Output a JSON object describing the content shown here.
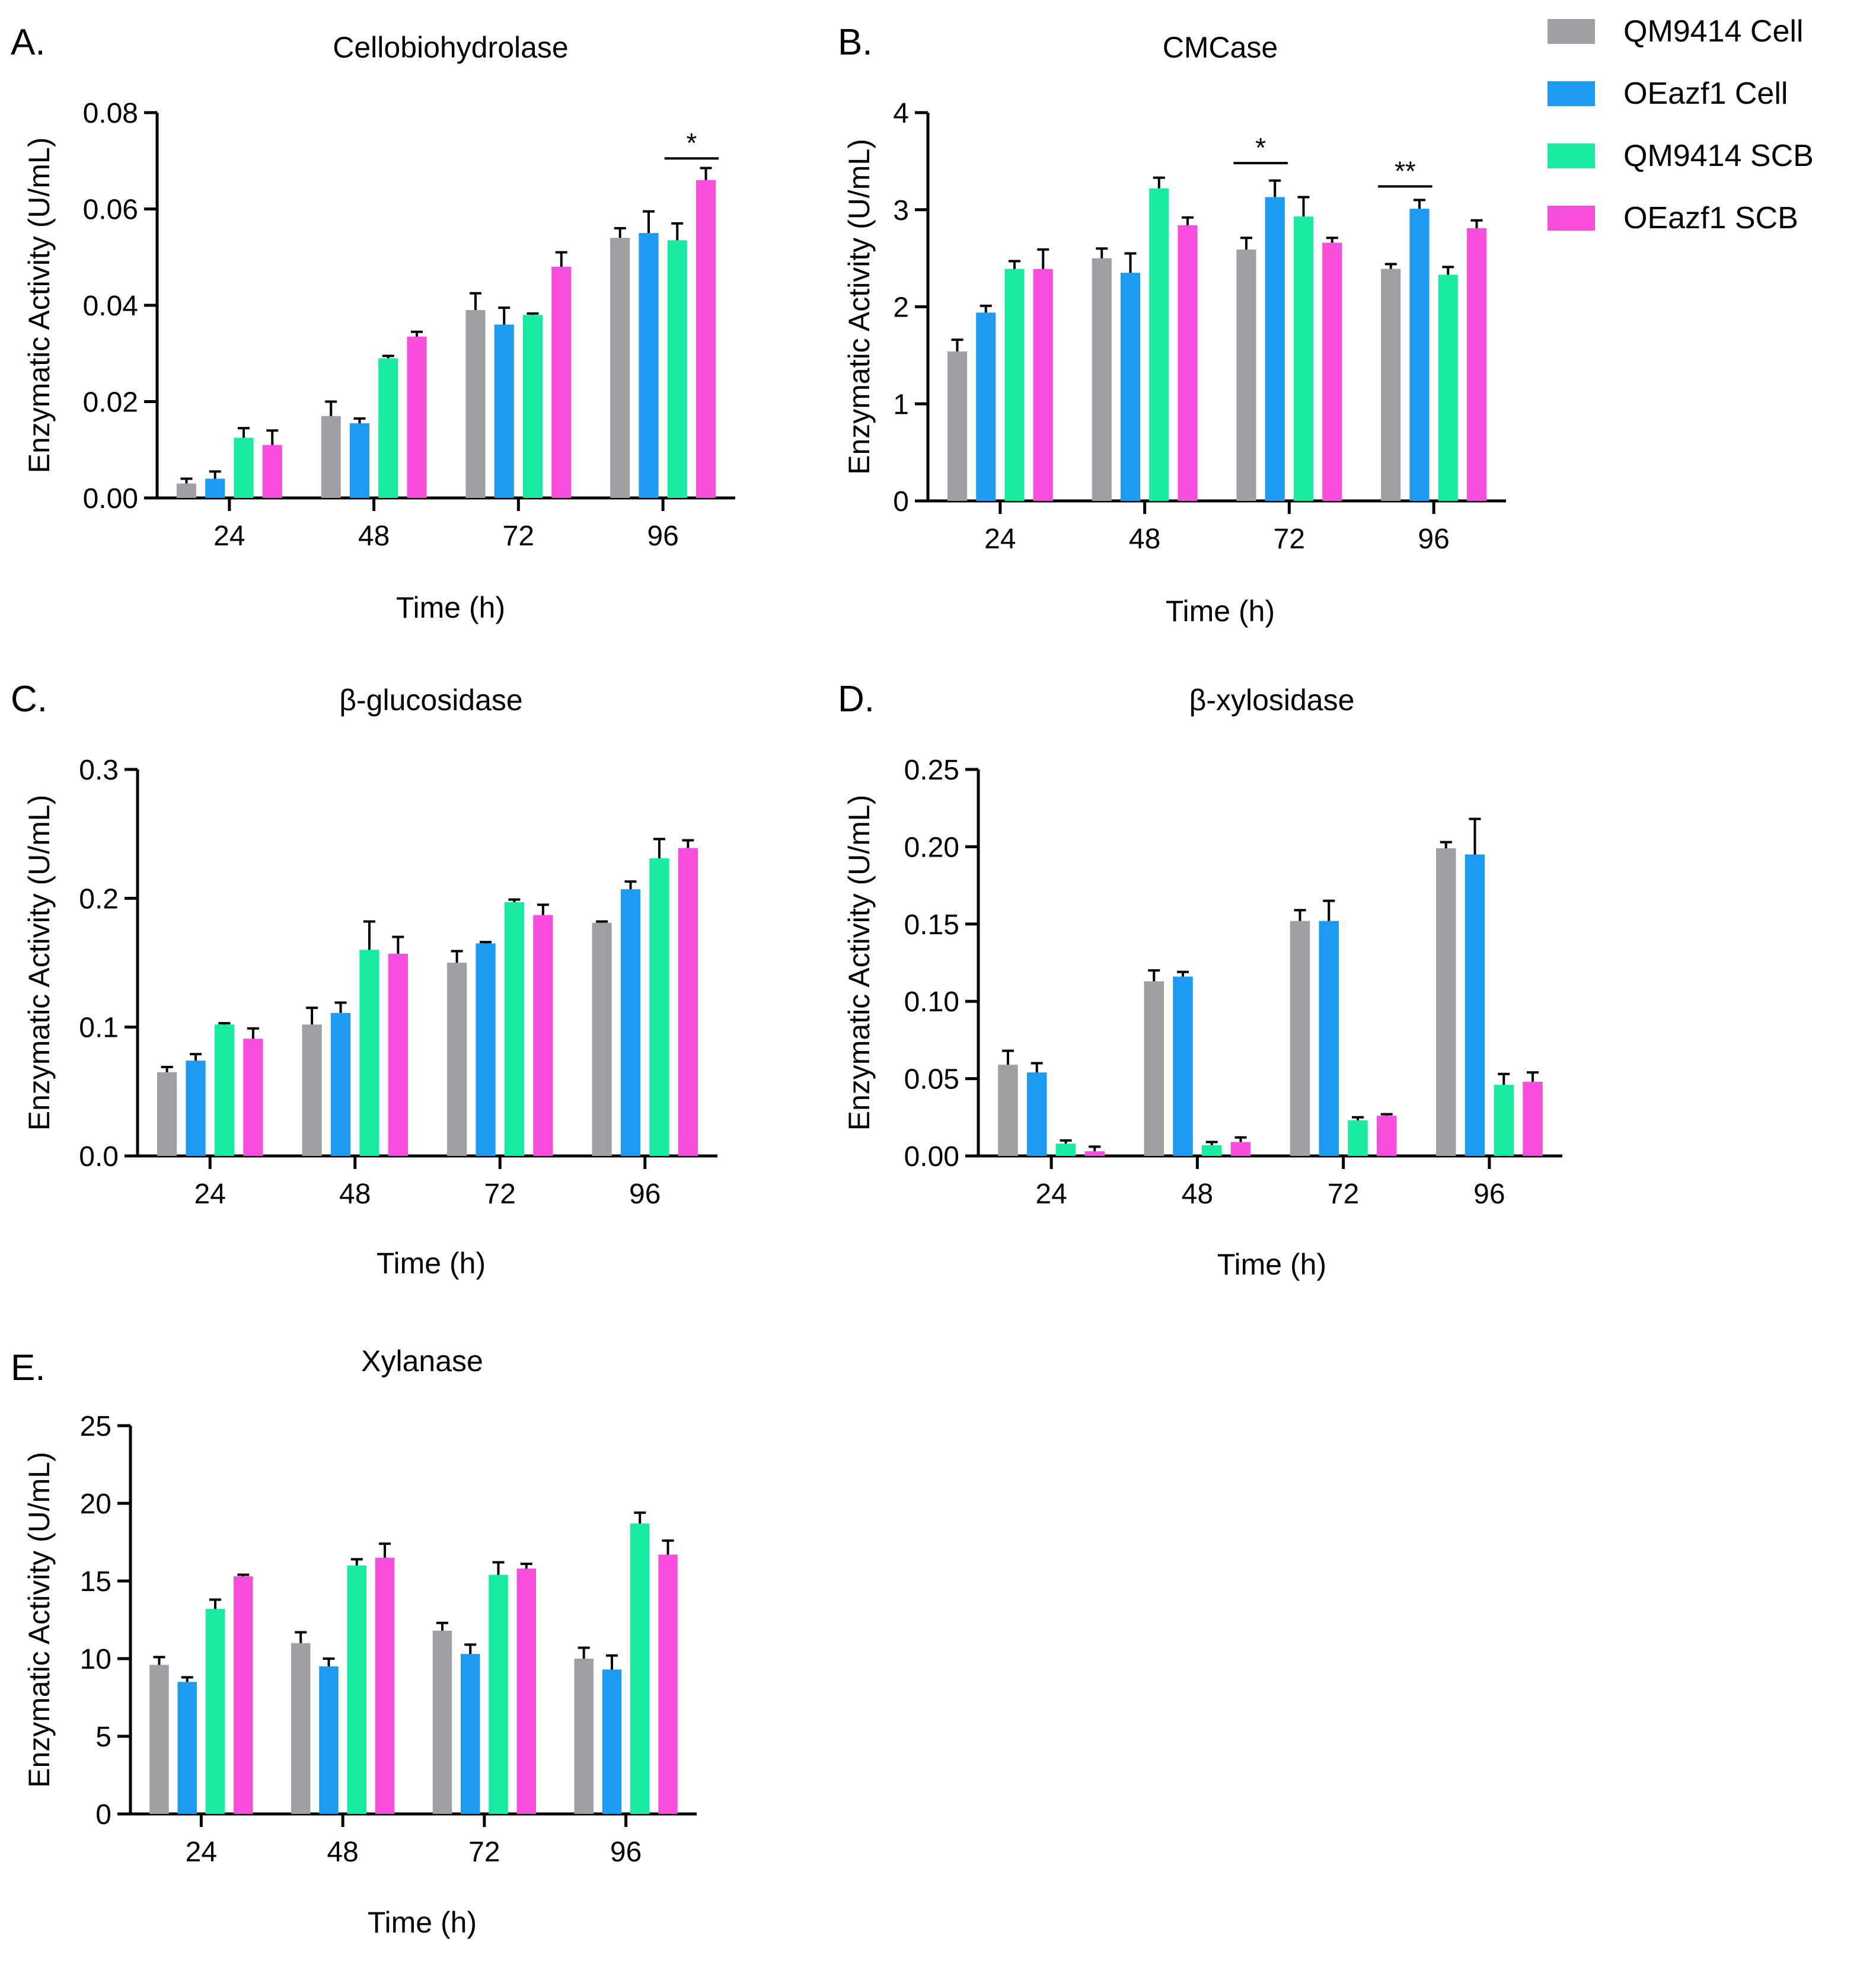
{
  "legend": {
    "entries": [
      {
        "name": "QM9414 Cell",
        "color": "#A09FA4"
      },
      {
        "name": "OEazf1 Cell",
        "color": "#1E9BF0"
      },
      {
        "name": "QM9414 SCB",
        "color": "#19EBA0"
      },
      {
        "name": "OEazf1 SCB",
        "color": "#F74FDB"
      }
    ]
  },
  "chart_data": [
    {
      "panel": "A.",
      "type": "bar",
      "title": "Cellobiohydrolase",
      "xlabel": "Time (h)",
      "ylabel": "Enzymatic Activity (U/mL)",
      "categories": [
        "24",
        "48",
        "72",
        "96"
      ],
      "ylim": [
        0,
        0.08
      ],
      "yticks": [
        0,
        0.02,
        0.04,
        0.06,
        0.08
      ],
      "ytick_labels": [
        "0.00",
        "0.02",
        "0.04",
        "0.06",
        "0.08"
      ],
      "series": [
        {
          "name": "QM9414 Cell",
          "values": [
            0.003,
            0.017,
            0.039,
            0.054
          ],
          "errors": [
            0.001,
            0.003,
            0.0035,
            0.002
          ]
        },
        {
          "name": "OEazf1 Cell",
          "values": [
            0.004,
            0.0155,
            0.036,
            0.055
          ],
          "errors": [
            0.0015,
            0.001,
            0.0035,
            0.0045
          ]
        },
        {
          "name": "QM9414 SCB",
          "values": [
            0.0125,
            0.029,
            0.038,
            0.0535
          ],
          "errors": [
            0.002,
            0.0005,
            0.0003,
            0.0035
          ]
        },
        {
          "name": "OEazf1 SCB",
          "values": [
            0.011,
            0.0335,
            0.048,
            0.066
          ],
          "errors": [
            0.003,
            0.001,
            0.003,
            0.0025
          ]
        }
      ],
      "significance": [
        {
          "label": "*",
          "category": "96",
          "from_series": 2,
          "to_series": 3,
          "y": 0.0705
        }
      ]
    },
    {
      "panel": "B.",
      "type": "bar",
      "title": "CMCase",
      "xlabel": "Time (h)",
      "ylabel": "Enzymatic Activity (U/mL)",
      "categories": [
        "24",
        "48",
        "72",
        "96"
      ],
      "ylim": [
        0,
        4
      ],
      "yticks": [
        0,
        1,
        2,
        3,
        4
      ],
      "ytick_labels": [
        "0",
        "1",
        "2",
        "3",
        "4"
      ],
      "series": [
        {
          "name": "QM9414 Cell",
          "values": [
            1.54,
            2.5,
            2.59,
            2.39
          ],
          "errors": [
            0.12,
            0.1,
            0.12,
            0.05
          ]
        },
        {
          "name": "OEazf1 Cell",
          "values": [
            1.94,
            2.35,
            3.13,
            3.01
          ],
          "errors": [
            0.07,
            0.2,
            0.17,
            0.09
          ]
        },
        {
          "name": "QM9414 SCB",
          "values": [
            2.39,
            3.22,
            2.93,
            2.33
          ],
          "errors": [
            0.08,
            0.11,
            0.2,
            0.08
          ]
        },
        {
          "name": "OEazf1 SCB",
          "values": [
            2.39,
            2.84,
            2.66,
            2.81
          ],
          "errors": [
            0.2,
            0.08,
            0.05,
            0.08
          ]
        }
      ],
      "significance": [
        {
          "label": "*",
          "category": "72",
          "from_series": 0,
          "to_series": 1,
          "y": 3.48
        },
        {
          "label": "**",
          "category": "96",
          "from_series": 0,
          "to_series": 1,
          "y": 3.24
        }
      ]
    },
    {
      "panel": "C.",
      "type": "bar",
      "title": "β-glucosidase",
      "xlabel": "Time (h)",
      "ylabel": "Enzymatic Activity (U/mL)",
      "categories": [
        "24",
        "48",
        "72",
        "96"
      ],
      "ylim": [
        0,
        0.3
      ],
      "yticks": [
        0,
        0.1,
        0.2,
        0.3
      ],
      "ytick_labels": [
        "0.0",
        "0.1",
        "0.2",
        "0.3"
      ],
      "series": [
        {
          "name": "QM9414 Cell",
          "values": [
            0.065,
            0.102,
            0.15,
            0.181
          ],
          "errors": [
            0.004,
            0.013,
            0.009,
            0.001
          ]
        },
        {
          "name": "OEazf1 Cell",
          "values": [
            0.074,
            0.111,
            0.165,
            0.207
          ],
          "errors": [
            0.005,
            0.008,
            0.001,
            0.006
          ]
        },
        {
          "name": "QM9414 SCB",
          "values": [
            0.102,
            0.16,
            0.197,
            0.231
          ],
          "errors": [
            0.001,
            0.022,
            0.002,
            0.015
          ]
        },
        {
          "name": "OEazf1 SCB",
          "values": [
            0.091,
            0.157,
            0.187,
            0.239
          ],
          "errors": [
            0.008,
            0.013,
            0.008,
            0.006
          ]
        }
      ],
      "significance": []
    },
    {
      "panel": "D.",
      "type": "bar",
      "title": "β-xylosidase",
      "xlabel": "Time (h)",
      "ylabel": "Enzymatic Activity (U/mL)",
      "categories": [
        "24",
        "48",
        "72",
        "96"
      ],
      "ylim": [
        0,
        0.25
      ],
      "yticks": [
        0,
        0.05,
        0.1,
        0.15,
        0.2,
        0.25
      ],
      "ytick_labels": [
        "0.00",
        "0.05",
        "0.10",
        "0.15",
        "0.20",
        "0.25"
      ],
      "series": [
        {
          "name": "QM9414 Cell",
          "values": [
            0.059,
            0.113,
            0.152,
            0.199
          ],
          "errors": [
            0.009,
            0.007,
            0.007,
            0.004
          ]
        },
        {
          "name": "OEazf1 Cell",
          "values": [
            0.054,
            0.116,
            0.152,
            0.195
          ],
          "errors": [
            0.006,
            0.003,
            0.013,
            0.023
          ]
        },
        {
          "name": "QM9414 SCB",
          "values": [
            0.008,
            0.007,
            0.023,
            0.046
          ],
          "errors": [
            0.002,
            0.002,
            0.002,
            0.007
          ]
        },
        {
          "name": "OEazf1 SCB",
          "values": [
            0.003,
            0.009,
            0.026,
            0.048
          ],
          "errors": [
            0.003,
            0.003,
            0.001,
            0.006
          ]
        }
      ],
      "significance": []
    },
    {
      "panel": "E.",
      "type": "bar",
      "title": "Xylanase",
      "xlabel": "Time (h)",
      "ylabel": "Enzymatic Activity (U/mL)",
      "categories": [
        "24",
        "48",
        "72",
        "96"
      ],
      "ylim": [
        0,
        25
      ],
      "yticks": [
        0,
        5,
        10,
        15,
        20,
        25
      ],
      "ytick_labels": [
        "0",
        "5",
        "10",
        "15",
        "20",
        "25"
      ],
      "series": [
        {
          "name": "QM9414 Cell",
          "values": [
            9.6,
            11.0,
            11.8,
            10.0
          ],
          "errors": [
            0.5,
            0.7,
            0.5,
            0.7
          ]
        },
        {
          "name": "OEazf1 Cell",
          "values": [
            8.5,
            9.5,
            10.3,
            9.3
          ],
          "errors": [
            0.3,
            0.5,
            0.6,
            0.9
          ]
        },
        {
          "name": "QM9414 SCB",
          "values": [
            13.2,
            16.0,
            15.4,
            18.7
          ],
          "errors": [
            0.6,
            0.4,
            0.8,
            0.7
          ]
        },
        {
          "name": "OEazf1 SCB",
          "values": [
            15.3,
            16.5,
            15.8,
            16.7
          ],
          "errors": [
            0.1,
            0.9,
            0.3,
            0.9
          ]
        }
      ],
      "significance": []
    }
  ]
}
